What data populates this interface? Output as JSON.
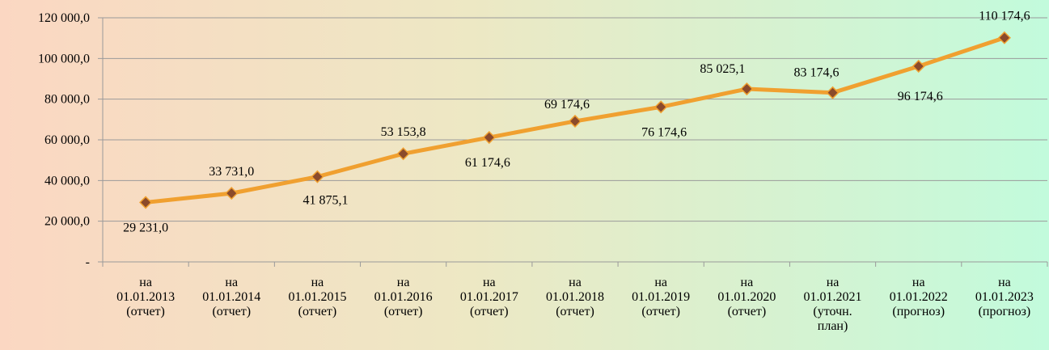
{
  "chart_data": {
    "type": "line",
    "categories": [
      [
        "на",
        "01.01.2013",
        "(отчет)"
      ],
      [
        "на",
        "01.01.2014",
        "(отчет)"
      ],
      [
        "на",
        "01.01.2015",
        "(отчет)"
      ],
      [
        "на",
        "01.01.2016",
        "(отчет)"
      ],
      [
        "на",
        "01.01.2017",
        "(отчет)"
      ],
      [
        "на",
        "01.01.2018",
        "(отчет)"
      ],
      [
        "на",
        "01.01.2019",
        "(отчет)"
      ],
      [
        "на",
        "01.01.2020",
        "(отчет)"
      ],
      [
        "на",
        "01.01.2021",
        "(уточн.",
        "план)"
      ],
      [
        "на",
        "01.01.2022",
        "(прогноз)"
      ],
      [
        "на",
        "01.01.2023",
        "(прогноз)"
      ]
    ],
    "values": [
      29231.0,
      33731.0,
      41875.1,
      53153.8,
      61174.6,
      69174.6,
      76174.6,
      85025.1,
      83174.6,
      96174.6,
      110174.6
    ],
    "value_labels": [
      "29 231,0",
      "33 731,0",
      "41 875,1",
      "53 153,8",
      "61 174,6",
      "69 174,6",
      "76 174,6",
      "85 025,1",
      "83 174,6",
      "96 174,6",
      "110 174,6"
    ],
    "color": "#f0a030",
    "marker_color": "#8b4a2b",
    "ylim": [
      0,
      120000
    ],
    "yticks": [
      {
        "value": 0,
        "label": "-"
      },
      {
        "value": 20000,
        "label": "20 000,0"
      },
      {
        "value": 40000,
        "label": "40 000,0"
      },
      {
        "value": 60000,
        "label": "60 000,0"
      },
      {
        "value": 80000,
        "label": "80 000,0"
      },
      {
        "value": 100000,
        "label": "100 000,0"
      },
      {
        "value": 120000,
        "label": "120 000,0"
      }
    ],
    "grid": true
  }
}
